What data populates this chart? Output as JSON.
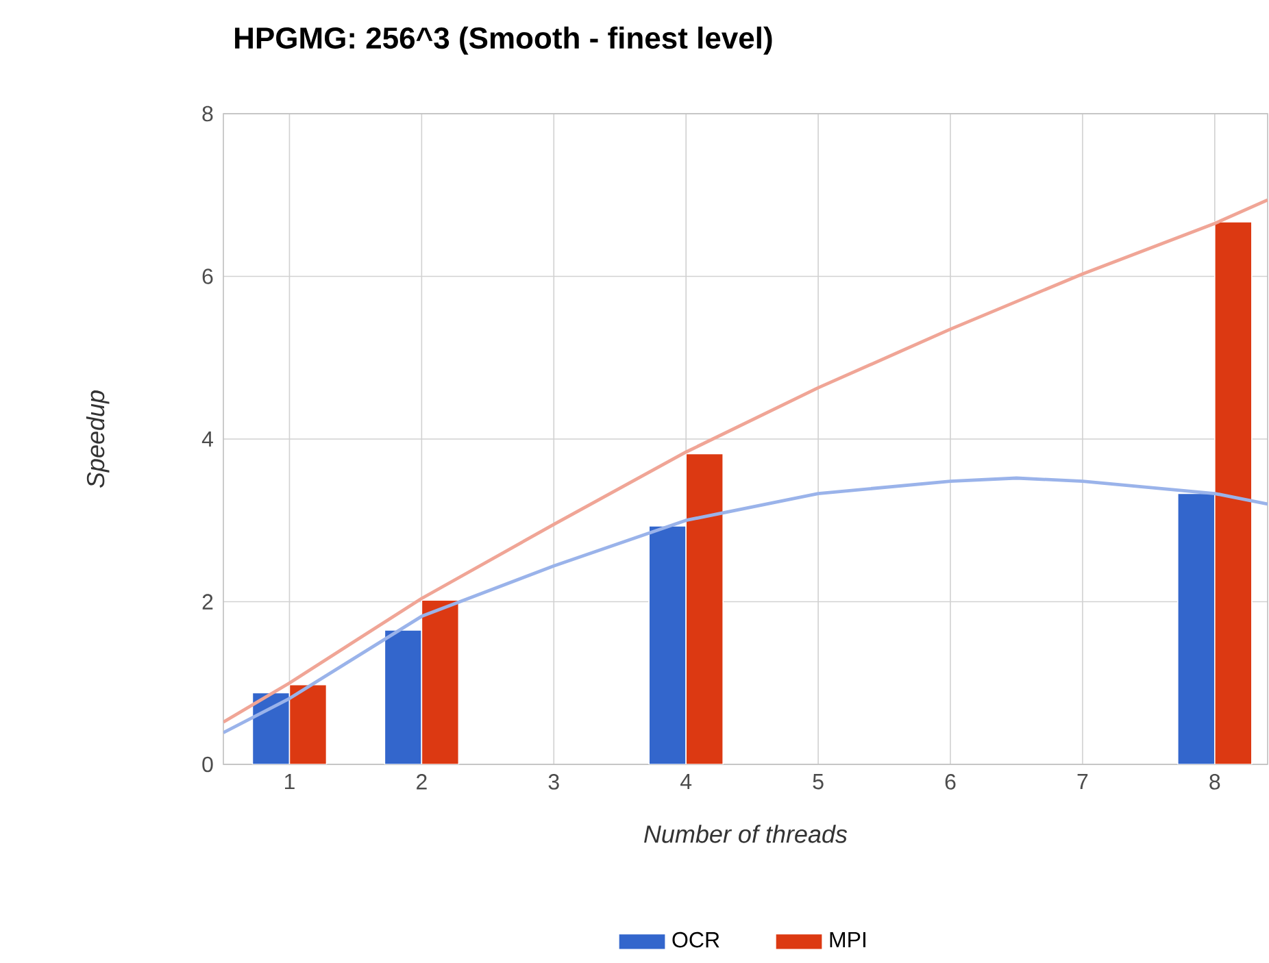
{
  "chart_data": {
    "type": "bar",
    "title": "HPGMG: 256^3 (Smooth - finest level)",
    "xlabel": "Number of threads",
    "ylabel": "Speedup",
    "x": [
      1,
      2,
      4,
      8
    ],
    "series": [
      {
        "name": "OCR",
        "color": "#3366cc",
        "values": [
          0.88,
          1.65,
          2.93,
          3.33
        ]
      },
      {
        "name": "MPI",
        "color": "#dc3912",
        "values": [
          0.98,
          2.02,
          3.82,
          6.67
        ]
      },
      {
        "type": "line",
        "color": "#9ab3ea",
        "x": [
          0.5,
          1,
          2,
          3,
          4,
          5,
          6,
          6.5,
          7,
          8,
          8.4
        ],
        "values": [
          0.39,
          0.81,
          1.82,
          2.44,
          3.0,
          3.33,
          3.48,
          3.52,
          3.48,
          3.33,
          3.2
        ]
      },
      {
        "type": "line",
        "color": "#f0a596",
        "x": [
          0.5,
          1,
          2,
          3,
          4,
          5,
          6,
          7,
          8,
          8.4
        ],
        "values": [
          0.52,
          1.0,
          2.04,
          2.95,
          3.84,
          4.63,
          5.35,
          6.03,
          6.65,
          6.94
        ]
      }
    ],
    "xlim": [
      0.5,
      8.4
    ],
    "xticks": [
      1,
      2,
      3,
      4,
      5,
      6,
      7,
      8
    ],
    "ylim": [
      0,
      8
    ],
    "yticks": [
      0,
      2,
      4,
      6,
      8
    ],
    "grid": true,
    "legend": "bottom",
    "marker": "none",
    "line_style": "solid"
  }
}
